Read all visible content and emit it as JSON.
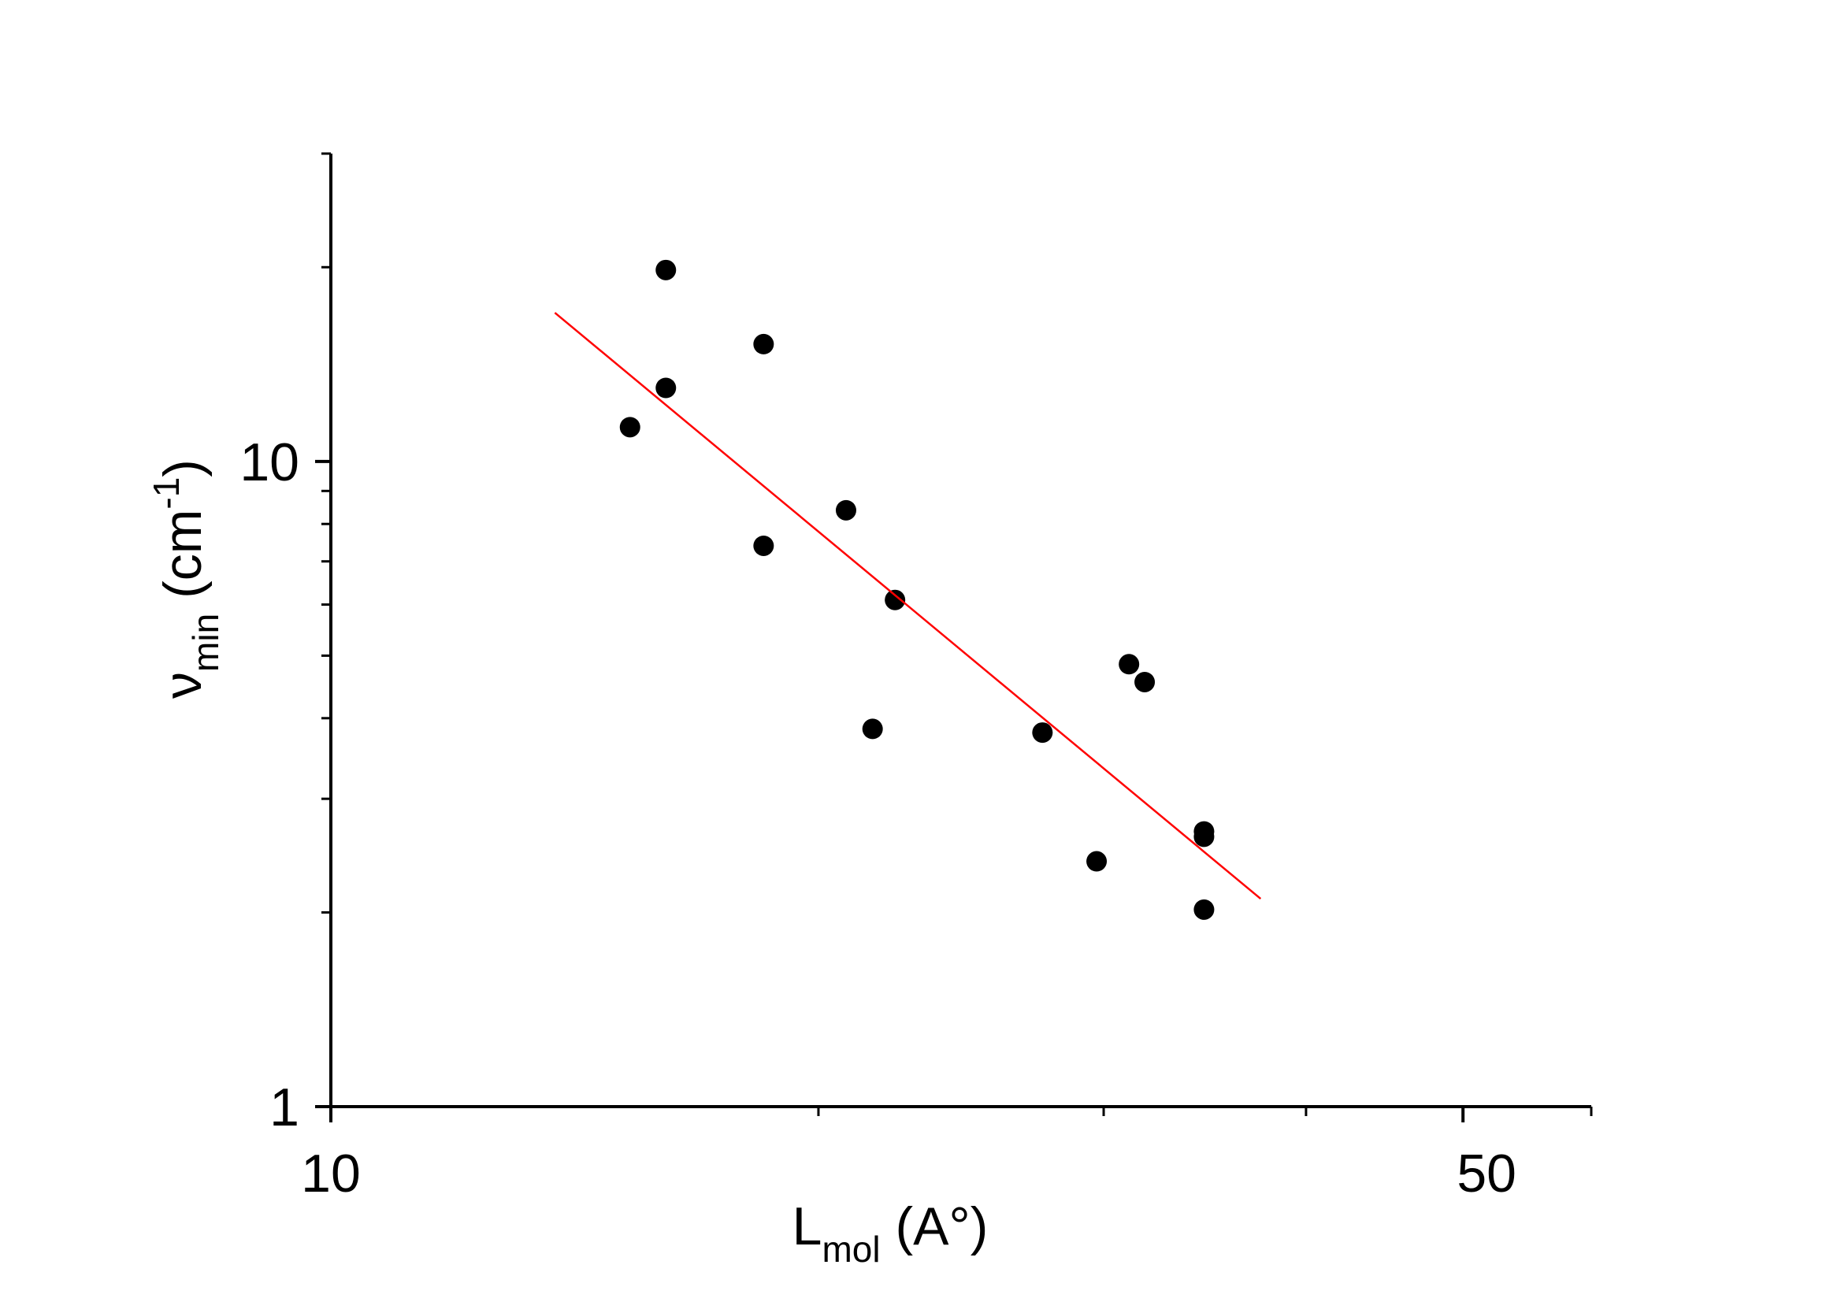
{
  "chart_data": {
    "type": "scatter",
    "title": "",
    "x_scale": "log",
    "y_scale": "log",
    "xlim": [
      10,
      60
    ],
    "ylim": [
      1,
      30
    ],
    "x_ticks": [
      {
        "value": 10,
        "label": "10"
      },
      {
        "value": 50,
        "label": "50"
      }
    ],
    "x_minor_ticks": [
      20,
      30,
      40,
      60
    ],
    "y_ticks": [
      {
        "value": 1,
        "label": "1"
      },
      {
        "value": 10,
        "label": "10"
      }
    ],
    "y_minor_ticks": [
      2,
      3,
      4,
      5,
      6,
      7,
      8,
      9,
      20,
      30
    ],
    "xlabel": {
      "main": "L",
      "sub": "mol",
      "rest": " (A°)"
    },
    "ylabel": {
      "main": "ν",
      "sub": "min",
      "rest": " (cm",
      "sup": "-1",
      "close": ")"
    },
    "series": [
      {
        "type": "scatter",
        "color": "#000000",
        "points": [
          {
            "x": 15.3,
            "y": 11.3
          },
          {
            "x": 16.1,
            "y": 19.8
          },
          {
            "x": 16.1,
            "y": 13.0
          },
          {
            "x": 18.5,
            "y": 15.2
          },
          {
            "x": 18.5,
            "y": 7.4
          },
          {
            "x": 20.8,
            "y": 8.4
          },
          {
            "x": 21.6,
            "y": 3.85
          },
          {
            "x": 22.3,
            "y": 6.1
          },
          {
            "x": 27.5,
            "y": 3.8
          },
          {
            "x": 29.7,
            "y": 2.4
          },
          {
            "x": 31.1,
            "y": 4.85
          },
          {
            "x": 31.8,
            "y": 4.55
          },
          {
            "x": 34.6,
            "y": 2.67
          },
          {
            "x": 34.6,
            "y": 2.62
          },
          {
            "x": 34.6,
            "y": 2.02
          }
        ]
      },
      {
        "type": "line",
        "color": "#ff0000",
        "points": [
          {
            "x": 13.75,
            "y": 17.0
          },
          {
            "x": 37.5,
            "y": 2.1
          }
        ]
      }
    ]
  }
}
